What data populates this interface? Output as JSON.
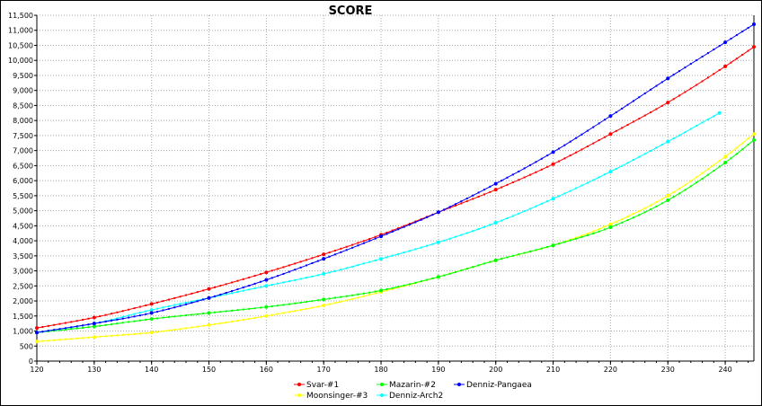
{
  "chart_data": {
    "type": "line",
    "title": "SCORE",
    "xlabel": "",
    "ylabel": "",
    "xlim": [
      120,
      245
    ],
    "ylim": [
      0,
      11500
    ],
    "xticks": [
      120,
      130,
      140,
      150,
      160,
      170,
      180,
      190,
      200,
      210,
      220,
      230,
      240
    ],
    "yticks": [
      0,
      500,
      1000,
      1500,
      2000,
      2500,
      3000,
      3500,
      4000,
      4500,
      5000,
      5500,
      6000,
      6500,
      7000,
      7500,
      8000,
      8500,
      9000,
      9500,
      10000,
      10500,
      11000,
      11500
    ],
    "ytick_labels": [
      "0",
      "500",
      "1,000",
      "1,500",
      "2,000",
      "2,500",
      "3,000",
      "3,500",
      "4,000",
      "4,500",
      "5,000",
      "5,500",
      "6,000",
      "6,500",
      "7,000",
      "7,500",
      "8,000",
      "8,500",
      "9,000",
      "9,500",
      "10,000",
      "10,500",
      "11,000",
      "11,500"
    ],
    "grid": true,
    "legend_position": "bottom",
    "series": [
      {
        "name": "Svar-#1",
        "color": "#ff0000",
        "x": [
          120,
          130,
          140,
          150,
          160,
          170,
          180,
          190,
          200,
          210,
          220,
          230,
          240,
          245
        ],
        "y": [
          1100,
          1450,
          1900,
          2400,
          2950,
          3550,
          4200,
          4950,
          5700,
          6550,
          7550,
          8600,
          9800,
          10450
        ]
      },
      {
        "name": "Moonsinger-#3",
        "color": "#ffff00",
        "x": [
          120,
          130,
          140,
          150,
          160,
          170,
          180,
          190,
          200,
          210,
          220,
          230,
          240,
          245
        ],
        "y": [
          650,
          800,
          950,
          1200,
          1500,
          1850,
          2300,
          2800,
          3350,
          3850,
          4550,
          5500,
          6800,
          7550
        ]
      },
      {
        "name": "Mazarin-#2",
        "color": "#00ff00",
        "x": [
          120,
          130,
          140,
          150,
          160,
          170,
          180,
          190,
          200,
          210,
          220,
          230,
          240,
          245
        ],
        "y": [
          950,
          1150,
          1400,
          1600,
          1800,
          2050,
          2350,
          2800,
          3350,
          3850,
          4450,
          5350,
          6600,
          7350
        ]
      },
      {
        "name": "Denniz-Arch2",
        "color": "#00ffff",
        "x": [
          120,
          130,
          140,
          150,
          160,
          170,
          180,
          190,
          200,
          210,
          220,
          230,
          239
        ],
        "y": [
          950,
          1250,
          1700,
          2100,
          2500,
          2900,
          3400,
          3950,
          4600,
          5400,
          6300,
          7300,
          8250
        ]
      },
      {
        "name": "Denniz-Pangaea",
        "color": "#0000ff",
        "x": [
          120,
          130,
          140,
          150,
          160,
          170,
          180,
          190,
          200,
          210,
          220,
          230,
          240,
          245
        ],
        "y": [
          950,
          1250,
          1600,
          2100,
          2700,
          3400,
          4150,
          4950,
          5900,
          6950,
          8150,
          9400,
          10600,
          11200
        ]
      }
    ],
    "legend_layout": [
      [
        "Svar-#1",
        "Mazarin-#2",
        "Denniz-Pangaea"
      ],
      [
        "Moonsinger-#3",
        "Denniz-Arch2"
      ]
    ]
  }
}
